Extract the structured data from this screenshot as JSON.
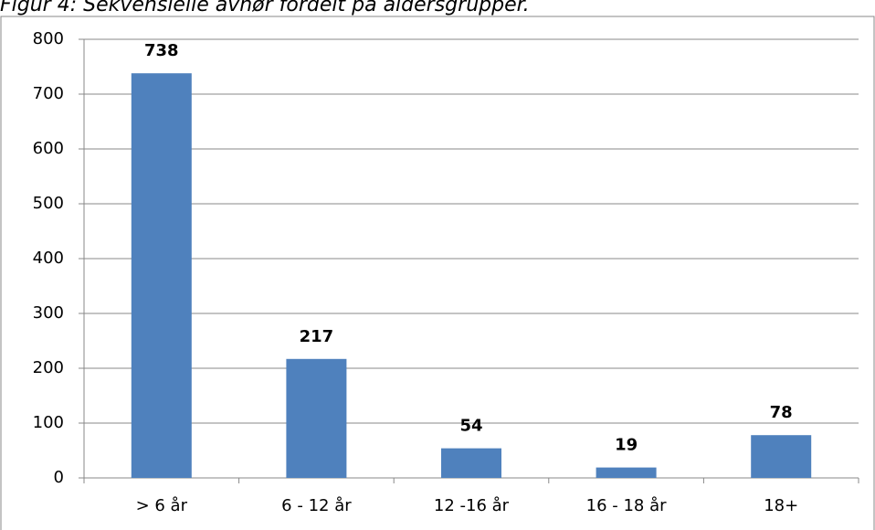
{
  "chart_data": {
    "type": "bar",
    "title": "Figur 4: Sekvensielle avhør fordelt på aldersgrupper.",
    "categories": [
      "> 6 år",
      "6 - 12 år",
      "12 -16 år",
      "16 - 18 år",
      "18+"
    ],
    "values": [
      738,
      217,
      54,
      19,
      78
    ],
    "color": "#4f81bd",
    "ylim": [
      0,
      800
    ],
    "yticks": [
      0,
      100,
      200,
      300,
      400,
      500,
      600,
      700,
      800
    ],
    "grid": true
  }
}
